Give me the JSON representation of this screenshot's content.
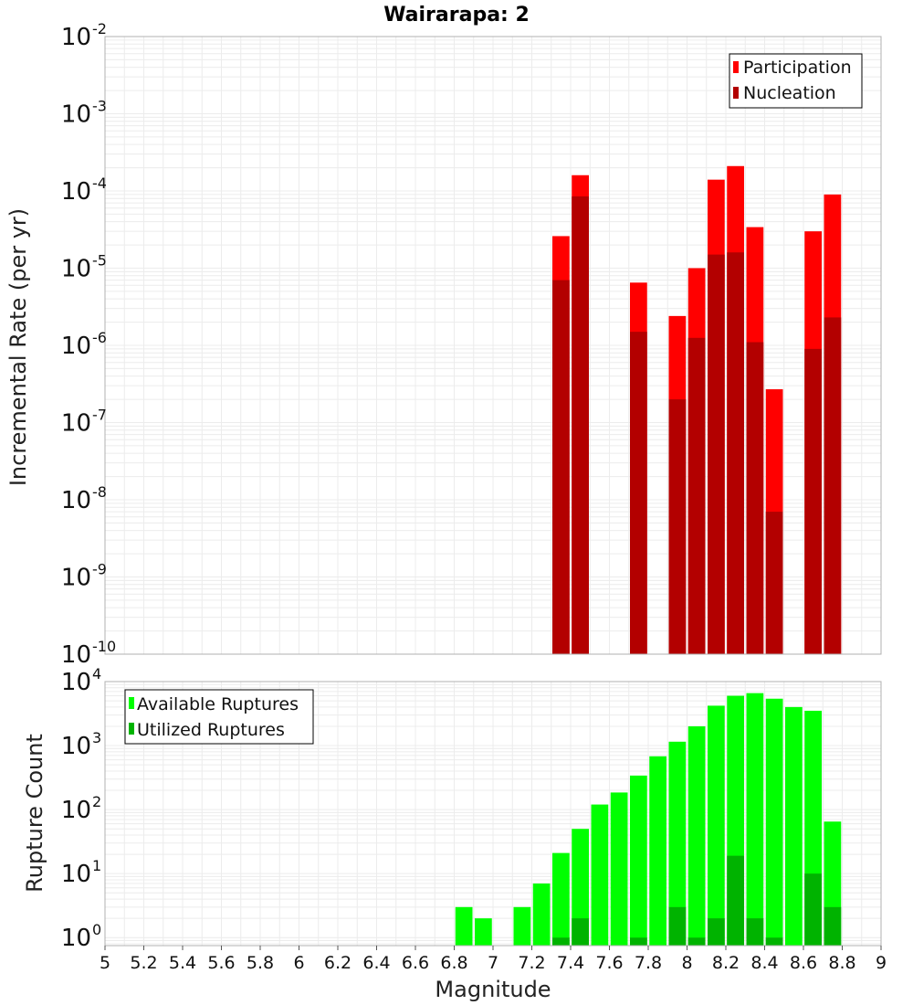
{
  "chart_data": [
    {
      "type": "bar",
      "title": "Wairarapa: 2",
      "xlabel": "",
      "ylabel": "Incremental Rate (per yr)",
      "xlim": [
        5,
        9
      ],
      "ylim": [
        1e-10,
        0.01
      ],
      "yscale": "log",
      "grid": true,
      "legend_position": "top-right",
      "x": [
        7.35,
        7.45,
        7.75,
        7.95,
        8.05,
        8.15,
        8.25,
        8.35,
        8.45,
        8.65,
        8.75
      ],
      "series": [
        {
          "name": "Participation",
          "color": "#ff0000",
          "values": [
            2.6e-05,
            0.00016,
            6.5e-06,
            2.4e-06,
            1e-05,
            0.00014,
            0.00021,
            3.4e-05,
            2.7e-07,
            3e-05,
            9e-05
          ]
        },
        {
          "name": "Nucleation",
          "color": "#b30000",
          "values": [
            7e-06,
            8.5e-05,
            1.5e-06,
            2e-07,
            1.25e-06,
            1.5e-05,
            1.6e-05,
            1.1e-06,
            7e-09,
            9e-07,
            2.3e-06
          ]
        }
      ]
    },
    {
      "type": "bar",
      "title": "",
      "xlabel": "Magnitude",
      "ylabel": "Rupture Count",
      "xlim": [
        5,
        9
      ],
      "ylim": [
        0.75,
        10000
      ],
      "yscale": "log",
      "grid": true,
      "legend_position": "top-left",
      "x_ticks": [
        "5",
        "5.2",
        "5.4",
        "5.6",
        "5.8",
        "6",
        "6.2",
        "6.4",
        "6.6",
        "6.8",
        "7",
        "7.2",
        "7.4",
        "7.6",
        "7.8",
        "8",
        "8.2",
        "8.4",
        "8.6",
        "8.8",
        "9"
      ],
      "x": [
        6.85,
        6.95,
        7.15,
        7.25,
        7.35,
        7.45,
        7.55,
        7.65,
        7.75,
        7.85,
        7.95,
        8.05,
        8.15,
        8.25,
        8.35,
        8.45,
        8.55,
        8.65,
        8.75
      ],
      "series": [
        {
          "name": "Available Ruptures",
          "color": "#00ff00",
          "values": [
            3,
            2,
            3,
            7,
            21,
            50,
            120,
            185,
            340,
            680,
            1150,
            2000,
            4200,
            6000,
            6600,
            5400,
            4000,
            3500,
            65
          ]
        },
        {
          "name": "Utilized Ruptures",
          "color": "#00b300",
          "values": [
            0,
            0,
            0,
            0,
            1,
            2,
            0,
            0,
            1,
            0,
            3,
            1,
            2,
            19,
            2,
            1,
            0,
            10,
            3
          ]
        }
      ]
    }
  ]
}
